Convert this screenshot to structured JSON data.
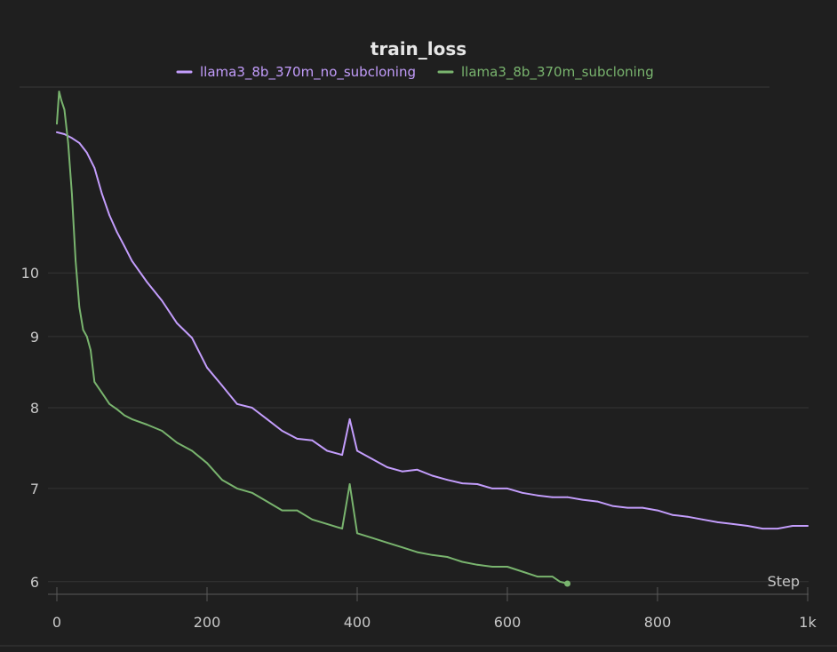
{
  "chart_data": {
    "type": "line",
    "title": "train_loss",
    "xlabel": "Step",
    "ylabel": "",
    "x_ticks": [
      {
        "value": 0,
        "label": "0"
      },
      {
        "value": 200,
        "label": "200"
      },
      {
        "value": 400,
        "label": "400"
      },
      {
        "value": 600,
        "label": "600"
      },
      {
        "value": 800,
        "label": "800"
      },
      {
        "value": 1000,
        "label": "1k"
      }
    ],
    "y_ticks": [
      {
        "value": 6,
        "label": "6"
      },
      {
        "value": 7,
        "label": "7"
      },
      {
        "value": 8,
        "label": "8"
      },
      {
        "value": 9,
        "label": "9"
      },
      {
        "value": 10,
        "label": "10"
      }
    ],
    "xlim": [
      0,
      1000
    ],
    "ylim": [
      5.85,
      13.6
    ],
    "y_scale": "log",
    "grid": true,
    "legend_position": "top-center",
    "series": [
      {
        "name": "llama3_8b_370m_no_subcloning",
        "color": "#c39dfc",
        "x": [
          0,
          10,
          20,
          30,
          40,
          50,
          60,
          70,
          80,
          90,
          100,
          120,
          140,
          160,
          180,
          200,
          220,
          240,
          260,
          280,
          300,
          320,
          340,
          360,
          380,
          390,
          400,
          420,
          440,
          460,
          480,
          500,
          520,
          540,
          560,
          580,
          600,
          620,
          640,
          660,
          680,
          700,
          720,
          740,
          760,
          780,
          800,
          820,
          840,
          860,
          880,
          900,
          920,
          940,
          960,
          980,
          1000
        ],
        "y": [
          12.62,
          12.58,
          12.5,
          12.4,
          12.2,
          11.9,
          11.4,
          11.0,
          10.7,
          10.45,
          10.2,
          9.85,
          9.55,
          9.2,
          8.98,
          8.55,
          8.3,
          8.05,
          8.0,
          7.85,
          7.7,
          7.6,
          7.58,
          7.45,
          7.4,
          7.85,
          7.45,
          7.35,
          7.25,
          7.2,
          7.22,
          7.15,
          7.1,
          7.06,
          7.05,
          7.0,
          7.0,
          6.95,
          6.92,
          6.9,
          6.9,
          6.87,
          6.85,
          6.8,
          6.78,
          6.78,
          6.75,
          6.7,
          6.68,
          6.65,
          6.62,
          6.6,
          6.58,
          6.55,
          6.55,
          6.58,
          6.58
        ]
      },
      {
        "name": "llama3_8b_370m_subcloning",
        "color": "#79b46e",
        "x": [
          0,
          3,
          6,
          10,
          15,
          20,
          25,
          30,
          35,
          40,
          45,
          50,
          60,
          70,
          80,
          90,
          100,
          120,
          140,
          160,
          180,
          200,
          220,
          240,
          260,
          280,
          300,
          320,
          340,
          360,
          380,
          390,
          400,
          420,
          440,
          460,
          480,
          500,
          520,
          540,
          560,
          580,
          600,
          620,
          640,
          660,
          670,
          680
        ],
        "y": [
          12.8,
          13.5,
          13.3,
          13.1,
          12.4,
          11.4,
          10.2,
          9.45,
          9.1,
          9.0,
          8.8,
          8.35,
          8.2,
          8.05,
          7.98,
          7.9,
          7.85,
          7.78,
          7.7,
          7.55,
          7.45,
          7.3,
          7.1,
          7.0,
          6.95,
          6.85,
          6.75,
          6.75,
          6.65,
          6.6,
          6.55,
          7.05,
          6.5,
          6.45,
          6.4,
          6.35,
          6.3,
          6.27,
          6.25,
          6.2,
          6.17,
          6.15,
          6.15,
          6.1,
          6.05,
          6.05,
          6.0,
          5.98
        ]
      }
    ]
  }
}
